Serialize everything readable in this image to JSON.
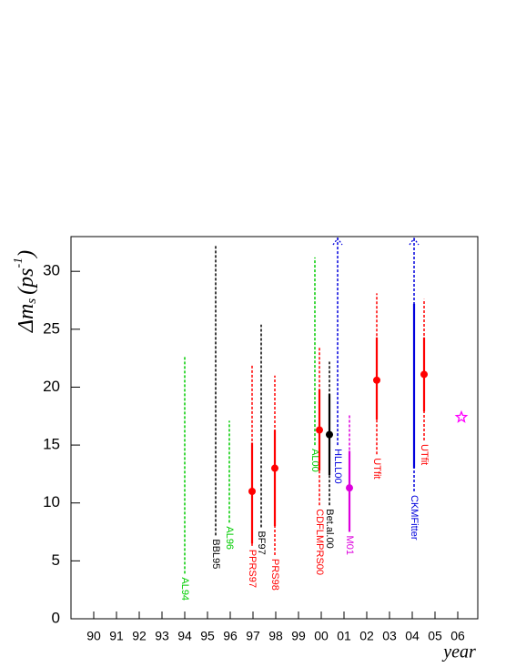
{
  "chart_data": {
    "type": "errorbar",
    "y_label": {
      "main": "Δm",
      "sub": "s",
      "unit": "(ps",
      "sup": "-1",
      "close": ")"
    },
    "x_label": "year",
    "xlim": [
      89,
      106.88
    ],
    "ylim": [
      0,
      33
    ],
    "xticks": [
      90,
      91,
      92,
      93,
      94,
      95,
      96,
      97,
      98,
      99,
      {
        "value": 100,
        "label": "00"
      },
      {
        "value": 101,
        "label": "01"
      },
      {
        "value": 102,
        "label": "02"
      },
      {
        "value": 103,
        "label": "03"
      },
      {
        "value": 104,
        "label": "04"
      },
      {
        "value": 105,
        "label": "05"
      },
      {
        "value": 106,
        "label": "06"
      }
    ],
    "yticks": [
      0,
      5,
      10,
      15,
      20,
      25,
      30
    ],
    "series": [
      {
        "name": "AL94",
        "color": "#00cc00",
        "x": 94.0,
        "range": [
          3.9,
          22.7
        ]
      },
      {
        "name": "BBL95",
        "color": "#000000",
        "x": 95.36,
        "range": [
          7.2,
          32.3
        ]
      },
      {
        "name": "AL96",
        "color": "#00cc00",
        "x": 95.96,
        "range": [
          8.3,
          17.1
        ]
      },
      {
        "name": "PPRS97",
        "color": "#ff0000",
        "x": 96.96,
        "range": [
          6.3,
          21.9
        ],
        "inner": [
          6.5,
          15.2
        ],
        "point": 11.0
      },
      {
        "name": "BF97",
        "color": "#000000",
        "x": 97.36,
        "range": [
          7.9,
          25.4
        ]
      },
      {
        "name": "PRS98",
        "color": "#ff0000",
        "x": 97.96,
        "range": [
          5.5,
          21.0
        ],
        "inner": [
          8.0,
          16.3
        ],
        "point": 13.0
      },
      {
        "name": "AL00",
        "color": "#00cc00",
        "x": 99.72,
        "range": [
          15.0,
          31.2
        ]
      },
      {
        "name": "CDFLMPRS00",
        "color": "#ff0000",
        "x": 99.92,
        "range": [
          9.8,
          23.4
        ],
        "inner": [
          12.8,
          19.8
        ],
        "point": 16.3
      },
      {
        "name": "Bet.al.00",
        "color": "#000000",
        "x": 100.36,
        "range": [
          9.8,
          22.2
        ],
        "inner": [
          12.4,
          19.4
        ],
        "point": 15.9
      },
      {
        "name": "HLLL00",
        "color": "#0000dd",
        "x": 100.72,
        "range": [
          15.0,
          33
        ],
        "open_top": true
      },
      {
        "name": "M01",
        "color": "#dd00dd",
        "x": 101.24,
        "range": [
          7.9,
          17.6
        ],
        "inner": [
          7.5,
          14.5
        ],
        "point": 11.3
      },
      {
        "name": "UTfit",
        "color": "#ff0000",
        "x": 102.44,
        "range": [
          14.2,
          28.1
        ],
        "inner": [
          17.2,
          24.3
        ],
        "point": 20.6
      },
      {
        "name": "CKMFitter",
        "color": "#0000dd",
        "x": 104.08,
        "range": [
          11.0,
          33
        ],
        "inner": [
          13.0,
          27.2
        ],
        "open_top": true
      },
      {
        "name": "UTfit",
        "color": "#ff0000",
        "x": 104.52,
        "range": [
          15.4,
          27.6
        ],
        "inner": [
          17.9,
          24.3
        ],
        "point": 21.1
      }
    ],
    "star": {
      "x": 106.16,
      "y": 17.4,
      "color": "#ff00ff"
    }
  }
}
